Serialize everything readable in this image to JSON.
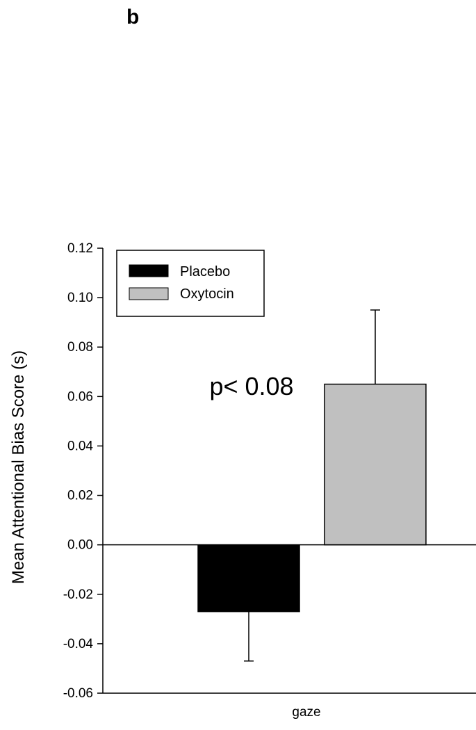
{
  "panel_label": "b",
  "chart_data": {
    "type": "bar",
    "categories": [
      "gaze"
    ],
    "series": [
      {
        "name": "Placebo",
        "values": [
          -0.027
        ],
        "error": [
          0.02
        ],
        "color": "#000000"
      },
      {
        "name": "Oxytocin",
        "values": [
          0.065
        ],
        "error": [
          0.03
        ],
        "color": "#c0c0c0"
      }
    ],
    "ylabel": "Mean Attentional Bias Score (s)",
    "xlabel": "",
    "ylim": [
      -0.06,
      0.12
    ],
    "yticks": [
      "-0.06",
      "-0.04",
      "-0.02",
      "0.00",
      "0.02",
      "0.04",
      "0.06",
      "0.08",
      "0.10",
      "0.12"
    ],
    "annotation": "p< 0.08",
    "legend_position": "top-left",
    "grid": false
  }
}
